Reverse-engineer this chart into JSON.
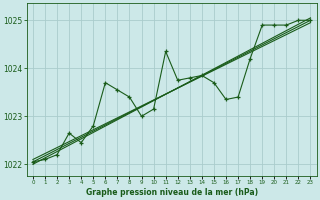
{
  "xlabel": "Graphe pression niveau de la mer (hPa)",
  "x_ticks": [
    0,
    1,
    2,
    3,
    4,
    5,
    6,
    7,
    8,
    9,
    10,
    11,
    12,
    13,
    14,
    15,
    16,
    17,
    18,
    19,
    20,
    21,
    22,
    23
  ],
  "xlim": [
    -0.5,
    23.5
  ],
  "ylim": [
    1021.75,
    1025.35
  ],
  "yticks": [
    1022,
    1023,
    1024,
    1025
  ],
  "bg_color": "#cce8e8",
  "grid_color": "#aacccc",
  "line_color": "#1a5c1a",
  "series1_x": [
    0,
    1,
    2,
    3,
    4,
    5,
    6,
    7,
    8,
    9,
    10,
    11,
    12,
    13,
    14,
    15,
    16,
    17,
    18,
    19,
    20,
    21,
    22,
    23
  ],
  "series1_y": [
    1022.05,
    1022.1,
    1022.2,
    1022.65,
    1022.45,
    1022.8,
    1023.7,
    1023.55,
    1023.4,
    1023.0,
    1023.15,
    1024.35,
    1023.75,
    1023.8,
    1023.85,
    1023.7,
    1023.35,
    1023.4,
    1024.2,
    1024.9,
    1024.9,
    1024.9,
    1025.0,
    1025.0
  ],
  "trend1_x": [
    0,
    23
  ],
  "trend1_y": [
    1022.05,
    1025.0
  ],
  "trend2_x": [
    0,
    23
  ],
  "trend2_y": [
    1022.0,
    1025.05
  ],
  "trend3_x": [
    0,
    23
  ],
  "trend3_y": [
    1022.1,
    1024.95
  ]
}
